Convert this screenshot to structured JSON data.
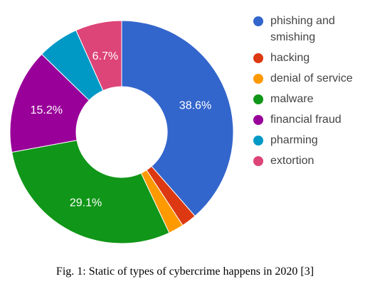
{
  "chart_data": {
    "type": "pie",
    "categories": [
      "phishing and smishing",
      "hacking",
      "denial of service",
      "malware",
      "financial fraud",
      "pharming",
      "extortion"
    ],
    "values": [
      38.6,
      2.2,
      2.2,
      29.1,
      15.2,
      6.0,
      6.7
    ],
    "data_labels": [
      "38.6%",
      "",
      "",
      "29.1%",
      "15.2%",
      "",
      "6.7%"
    ],
    "colors": [
      "#3366cc",
      "#dc3912",
      "#ff9900",
      "#109618",
      "#990099",
      "#0099c6",
      "#dd4477"
    ],
    "donut": true,
    "legend_position": "right"
  },
  "caption": "Fig. 1: Static of types of cybercrime happens in 2020 [3]"
}
